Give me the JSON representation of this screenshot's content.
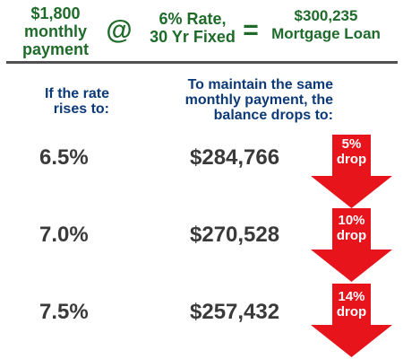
{
  "header": {
    "payment_line1": "$1,800",
    "payment_line2": "monthly",
    "payment_line3": "payment",
    "at_symbol": "@",
    "rate_line1": "6% Rate,",
    "rate_line2": "30 Yr Fixed",
    "equals_symbol": "=",
    "loan_line1": "$300,235",
    "loan_line2": "Mortgage Loan"
  },
  "subheader": {
    "left_line1": "If the rate",
    "left_line2": "rises to:",
    "right_line1": "To maintain the same",
    "right_line2": "monthly payment, the",
    "right_line3": "balance drops to:"
  },
  "rows": [
    {
      "rate": "6.5%",
      "balance": "$284,766",
      "drop_pct": "5%",
      "drop_label": "drop"
    },
    {
      "rate": "7.0%",
      "balance": "$270,528",
      "drop_pct": "10%",
      "drop_label": "drop"
    },
    {
      "rate": "7.5%",
      "balance": "$257,432",
      "drop_pct": "14%",
      "drop_label": "drop"
    }
  ],
  "colors": {
    "header_green": "#1e6b2a",
    "subheader_blue": "#0c3a78",
    "value_gray": "#3a3a3a",
    "arrow_red": "#e8141b"
  }
}
